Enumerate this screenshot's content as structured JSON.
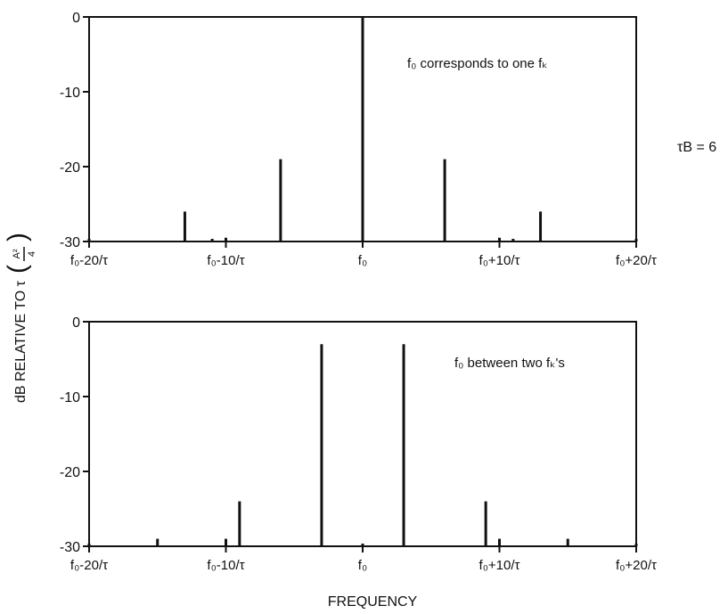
{
  "figure": {
    "ylabel": "dB RELATIVE TO τ",
    "ylabel_factor": {
      "numerator": "A²",
      "denominator": "4"
    },
    "xlabel": "FREQUENCY",
    "parameter_label": "τB = 6"
  },
  "chart_data": [
    {
      "type": "bar",
      "panel": "top",
      "annotation": "f₀ corresponds to one fₖ",
      "x_unit": "offset from f₀ in units of 1/τ",
      "xlim": [
        -20,
        20
      ],
      "ylim": [
        -30,
        0
      ],
      "yticks": [
        0,
        -10,
        -20,
        -30
      ],
      "xtick_values": [
        -20,
        -10,
        0,
        10,
        20
      ],
      "xtick_labels": [
        "f₀-20/τ",
        "f₀-10/τ",
        "f₀",
        "f₀+10/τ",
        "f₀+20/τ"
      ],
      "x": [
        -20,
        -13,
        -11,
        -10,
        -6,
        0,
        6,
        10,
        11,
        13,
        20
      ],
      "values": [
        -30,
        -26,
        -30,
        -29.5,
        -19,
        0,
        -19,
        -29.5,
        -30,
        -26,
        -30
      ]
    },
    {
      "type": "bar",
      "panel": "bottom",
      "annotation": "f₀ between two fₖ's",
      "x_unit": "offset from f₀ in units of 1/τ",
      "xlim": [
        -20,
        20
      ],
      "ylim": [
        -30,
        0
      ],
      "yticks": [
        0,
        -10,
        -20,
        -30
      ],
      "xtick_values": [
        -20,
        -10,
        0,
        10,
        20
      ],
      "xtick_labels": [
        "f₀-20/τ",
        "f₀-10/τ",
        "f₀",
        "f₀+10/τ",
        "f₀+20/τ"
      ],
      "x": [
        -20,
        -15,
        -10,
        -9,
        -3,
        0,
        3,
        9,
        10,
        15,
        20
      ],
      "values": [
        -30,
        -29,
        -29,
        -24,
        -3,
        -30,
        -3,
        -24,
        -29,
        -29,
        -30
      ]
    }
  ]
}
